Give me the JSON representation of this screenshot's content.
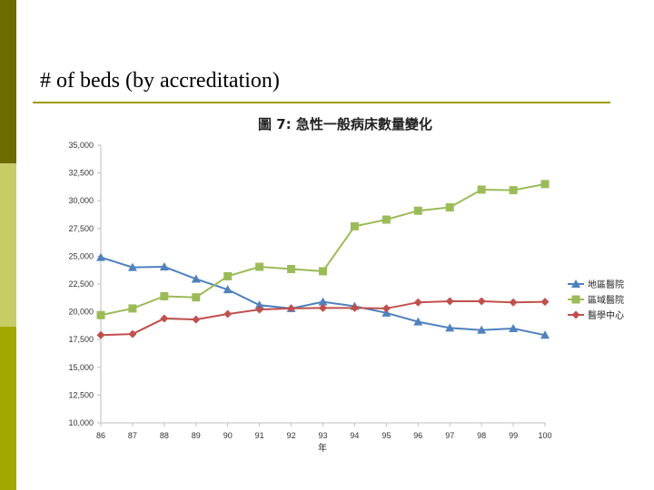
{
  "slide": {
    "title": "# of beds (by accreditation)",
    "accent_colors": [
      "#6b6b00",
      "#c8cc66",
      "#a3a800"
    ]
  },
  "chart_data": {
    "type": "line",
    "title": "圖 7: 急性一般病床數量變化",
    "xlabel": "年",
    "ylabel": "",
    "ylim": [
      10000,
      35000
    ],
    "yticks": [
      "10,000",
      "12,500",
      "15,000",
      "17,500",
      "20,000",
      "22,500",
      "25,000",
      "27,500",
      "30,000",
      "32,500",
      "35,000"
    ],
    "categories": [
      "86",
      "87",
      "88",
      "89",
      "90",
      "91",
      "92",
      "93",
      "94",
      "95",
      "96",
      "97",
      "98",
      "99",
      "100"
    ],
    "grid": false,
    "legend": "right",
    "series": [
      {
        "name": "地區醫院",
        "color": "#4f81bd",
        "marker": "triangle",
        "values": [
          24900,
          24000,
          24050,
          22950,
          22000,
          20600,
          20300,
          20900,
          20500,
          19900,
          19100,
          18550,
          18350,
          18500,
          17900
        ]
      },
      {
        "name": "區域醫院",
        "color": "#9bbb59",
        "marker": "square",
        "values": [
          19700,
          20300,
          21400,
          21300,
          23200,
          24050,
          23850,
          23650,
          27700,
          28300,
          29100,
          29400,
          31000,
          30950,
          31500
        ]
      },
      {
        "name": "醫學中心",
        "color": "#c0504d",
        "marker": "diamond",
        "values": [
          17900,
          18000,
          19400,
          19300,
          19800,
          20200,
          20300,
          20350,
          20350,
          20300,
          20850,
          20950,
          20950,
          20850,
          20900
        ]
      }
    ]
  }
}
